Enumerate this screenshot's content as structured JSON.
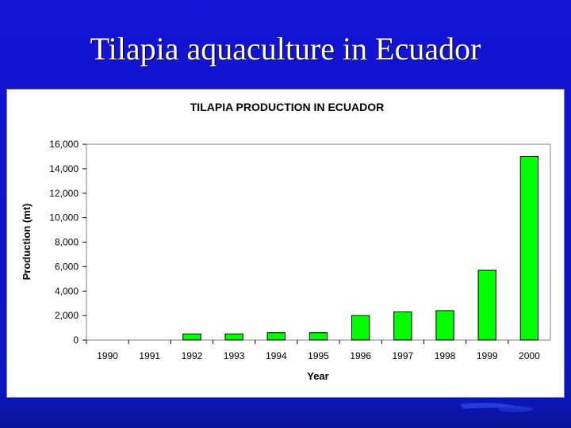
{
  "slide": {
    "title": "Tilapia aquaculture in Ecuador"
  },
  "colors": {
    "background": "#1414d6",
    "bar_fill": "#00ff00",
    "bar_stroke": "#000000"
  },
  "chart_data": {
    "type": "bar",
    "title": "TILAPIA PRODUCTION IN ECUADOR",
    "xlabel": "Year",
    "ylabel": "Production (mt)",
    "ylim": [
      0,
      16000
    ],
    "yticks": [
      "0",
      "2,000",
      "4,000",
      "6,000",
      "8,000",
      "10,000",
      "12,000",
      "14,000",
      "16,000"
    ],
    "ytick_values": [
      0,
      2000,
      4000,
      6000,
      8000,
      10000,
      12000,
      14000,
      16000
    ],
    "grid": false,
    "categories": [
      "1990",
      "1991",
      "1992",
      "1993",
      "1994",
      "1995",
      "1996",
      "1997",
      "1998",
      "1999",
      "2000"
    ],
    "values": [
      0,
      0,
      500,
      500,
      600,
      600,
      2000,
      2300,
      2400,
      5700,
      15000
    ]
  }
}
